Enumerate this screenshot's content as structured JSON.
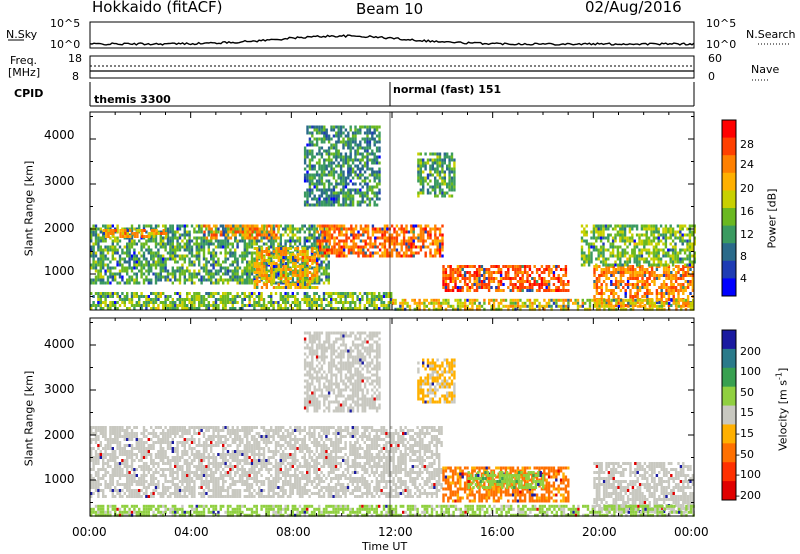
{
  "header": {
    "station": "Hokkaido (fitACF)",
    "beam": "Beam 10",
    "date": "02/Aug/2016"
  },
  "noise_panel": {
    "left_label": "N.Sky",
    "right_label": "N.Search",
    "left_ticks": [
      "10^5",
      "10^0"
    ],
    "right_ticks": [
      "10^5",
      "10^0"
    ]
  },
  "freq_panel": {
    "left_label_line1": "Freq.",
    "left_label_line2": "[MHz]",
    "right_label": "Nave",
    "left_ticks": [
      "18",
      "8"
    ],
    "right_ticks": [
      "60",
      "0"
    ]
  },
  "cpid_panel": {
    "label": "CPID",
    "segments": [
      "themis 3300",
      "normal (fast) 151"
    ]
  },
  "x_axis": {
    "label": "Time UT",
    "ticks": [
      "00:00",
      "04:00",
      "08:00",
      "12:00",
      "16:00",
      "20:00",
      "00:00"
    ]
  },
  "power_colorbar": {
    "label": "Power [dB]",
    "ticks": [
      "28",
      "24",
      "20",
      "16",
      "12",
      "8",
      "4"
    ],
    "colors": [
      "#ff0000",
      "#ff4000",
      "#ff8000",
      "#ffb000",
      "#c8d000",
      "#6ab820",
      "#3a9a60",
      "#2a6a8a",
      "#1e3cb4",
      "#0000ff"
    ]
  },
  "velocity_colorbar": {
    "label": "Velocity [m s",
    "label_sup": "-1",
    "label_end": "]",
    "ticks": [
      "200",
      "100",
      "50",
      "15",
      "-15",
      "-50",
      "-100",
      "-200"
    ],
    "colors": [
      "#1a1aa0",
      "#2a7a8a",
      "#38a050",
      "#90d040",
      "#c8c8c0",
      "#ffb000",
      "#ff7000",
      "#ff3000",
      "#e00000"
    ]
  },
  "chart_data": [
    {
      "type": "heatmap",
      "name": "Power",
      "xlabel": "Time UT",
      "ylabel": "Slant Range [km]",
      "xlim": [
        0,
        24
      ],
      "ylim": [
        200,
        4600
      ],
      "y_ticks": [
        1000,
        2000,
        3000,
        4000
      ],
      "x_ticks": [
        0,
        4,
        8,
        12,
        16,
        20,
        24
      ],
      "colorbar_label": "Power [dB]",
      "colorbar_ticks": [
        4,
        8,
        12,
        16,
        20,
        24,
        28
      ],
      "regions": [
        {
          "t0": 0.0,
          "t1": 9.5,
          "r0": 800,
          "r1": 2100,
          "value": 14
        },
        {
          "t0": 0.5,
          "t1": 3.0,
          "r0": 1800,
          "r1": 2000,
          "value": 22
        },
        {
          "t0": 4.5,
          "t1": 7.5,
          "r0": 1800,
          "r1": 2100,
          "value": 24
        },
        {
          "t0": 6.5,
          "t1": 9.0,
          "r0": 700,
          "r1": 1600,
          "value": 22
        },
        {
          "t0": 9.0,
          "t1": 14.0,
          "r0": 1400,
          "r1": 2100,
          "value": 25
        },
        {
          "t0": 14.0,
          "t1": 19.0,
          "r0": 600,
          "r1": 1200,
          "value": 26
        },
        {
          "t0": 20.0,
          "t1": 24.0,
          "r0": 300,
          "r1": 1200,
          "value": 24
        },
        {
          "t0": 0.0,
          "t1": 12.0,
          "r0": 250,
          "r1": 600,
          "value": 16
        },
        {
          "t0": 12.0,
          "t1": 24.0,
          "r0": 200,
          "r1": 450,
          "value": 20
        },
        {
          "t0": 8.5,
          "t1": 11.5,
          "r0": 2500,
          "r1": 4300,
          "value": 12
        },
        {
          "t0": 13.0,
          "t1": 14.5,
          "r0": 2700,
          "r1": 3700,
          "value": 14
        },
        {
          "t0": 19.5,
          "t1": 24.0,
          "r0": 1200,
          "r1": 2100,
          "value": 16
        }
      ]
    },
    {
      "type": "heatmap",
      "name": "Velocity",
      "xlabel": "Time UT",
      "ylabel": "Slant Range [km]",
      "xlim": [
        0,
        24
      ],
      "ylim": [
        200,
        4600
      ],
      "y_ticks": [
        1000,
        2000,
        3000,
        4000
      ],
      "x_ticks": [
        0,
        4,
        8,
        12,
        16,
        20,
        24
      ],
      "colorbar_label": "Velocity [m s-1]",
      "colorbar_ticks": [
        -200,
        -100,
        -50,
        -15,
        15,
        50,
        100,
        200
      ],
      "regions": [
        {
          "t0": 0.0,
          "t1": 14.0,
          "r0": 600,
          "r1": 2200,
          "value": 0
        },
        {
          "t0": 8.5,
          "t1": 11.5,
          "r0": 2500,
          "r1": 4300,
          "value": 0
        },
        {
          "t0": 14.0,
          "t1": 19.0,
          "r0": 500,
          "r1": 1300,
          "value": -60
        },
        {
          "t0": 15.0,
          "t1": 18.0,
          "r0": 800,
          "r1": 1200,
          "value": 40
        },
        {
          "t0": 20.0,
          "t1": 24.0,
          "r0": 300,
          "r1": 1400,
          "value": 0
        },
        {
          "t0": 0.0,
          "t1": 24.0,
          "r0": 200,
          "r1": 450,
          "value": 25
        },
        {
          "t0": 13.0,
          "t1": 14.5,
          "r0": 2700,
          "r1": 3700,
          "value": -20
        }
      ]
    }
  ]
}
